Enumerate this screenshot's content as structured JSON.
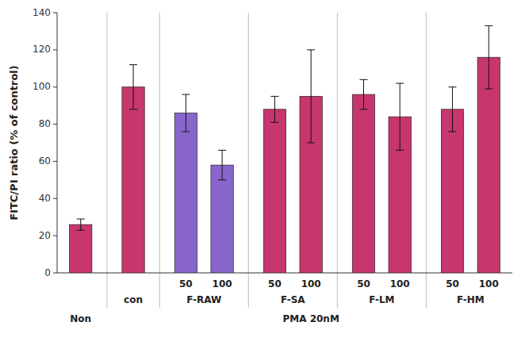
{
  "chart_data": {
    "type": "bar",
    "ylabel": "FITC/PI ratio (% of control)",
    "categories": [
      null,
      null,
      "50",
      "100",
      "50",
      "100",
      "50",
      "100",
      "50",
      "100"
    ],
    "category_groups": [
      null,
      "con",
      "F-RAW",
      "F-RAW",
      "F-SA",
      "F-SA",
      "F-LM",
      "F-LM",
      "F-HM",
      "F-HM"
    ],
    "treatments": [
      "Non",
      "PMA 20nM",
      "PMA 20nM",
      "PMA 20nM",
      "PMA 20nM",
      "PMA 20nM",
      "PMA 20nM",
      "PMA 20nM",
      "PMA 20nM",
      "PMA 20nM"
    ],
    "values": [
      26,
      100,
      86,
      58,
      88,
      95,
      96,
      84,
      88,
      116
    ],
    "errors": [
      3,
      12,
      10,
      8,
      7,
      25,
      8,
      18,
      12,
      17
    ],
    "colors": [
      "#c8366e",
      "#c8366e",
      "#8866cc",
      "#8866cc",
      "#c8366e",
      "#c8366e",
      "#c8366e",
      "#c8366e",
      "#c8366e",
      "#c8366e"
    ],
    "ylim": [
      0,
      140
    ],
    "yticks": [
      0,
      20,
      40,
      60,
      80,
      100,
      120,
      140
    ],
    "grid": false
  }
}
